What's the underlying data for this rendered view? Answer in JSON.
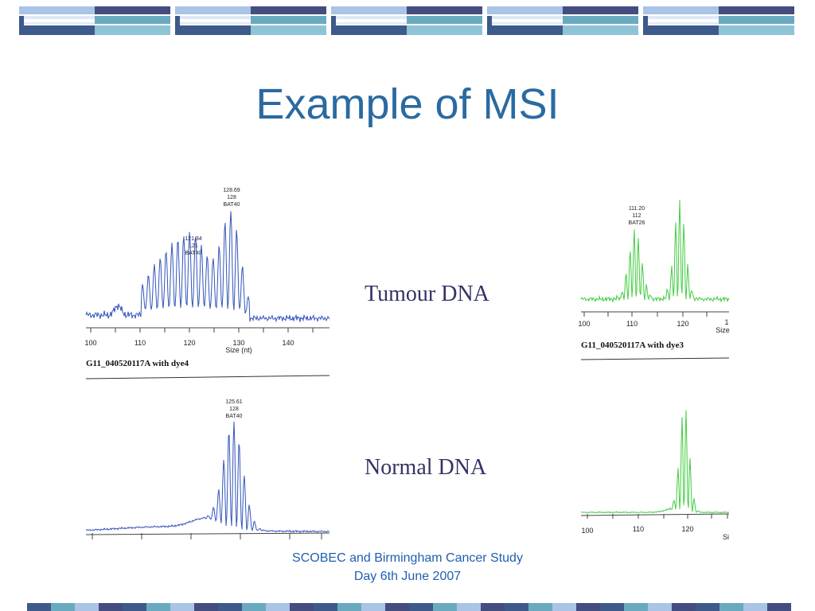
{
  "slide": {
    "title": "Example of MSI",
    "tumour_label": "Tumour DNA",
    "normal_label": "Normal DNA",
    "footer_line1": "SCOBEC and Birmingham Cancer Study",
    "footer_line2": "Day 6th June 2007"
  },
  "colors": {
    "title": "#2b6aa0",
    "label": "#333366",
    "footer": "#1f5fb0",
    "trace_blue": "#3355bb",
    "trace_green": "#44cc44",
    "band_dark": "#444d80",
    "band_light": "#a9c4e6",
    "band_teal": "#6aaac0",
    "band_navy": "#3d5a8a"
  },
  "panels": {
    "tumour_dye4": {
      "ticks": [
        "100",
        "110",
        "120",
        "130",
        "140"
      ],
      "axis_unit": "Size (nt)",
      "caption": "G11_040520117A with dye4",
      "peak1": {
        "line1": "121.34",
        "line2": "121",
        "line3": "BAT40"
      },
      "peak2": {
        "line1": "128.69",
        "line2": "128",
        "line3": "BAT40"
      }
    },
    "tumour_dye3": {
      "ticks": [
        "100",
        "110",
        "120",
        "1"
      ],
      "axis_unit": "Size",
      "caption": "G11_040520117A with dye3",
      "peak1": {
        "line1": "111.20",
        "line2": "112",
        "line3": "BAT26"
      }
    },
    "normal_dye4": {
      "peak1": {
        "line1": "125.61",
        "line2": "128",
        "line3": "BAT40"
      }
    },
    "normal_dye3": {
      "ticks": [
        "100",
        "110",
        "120"
      ],
      "axis_unit": "Si"
    }
  }
}
